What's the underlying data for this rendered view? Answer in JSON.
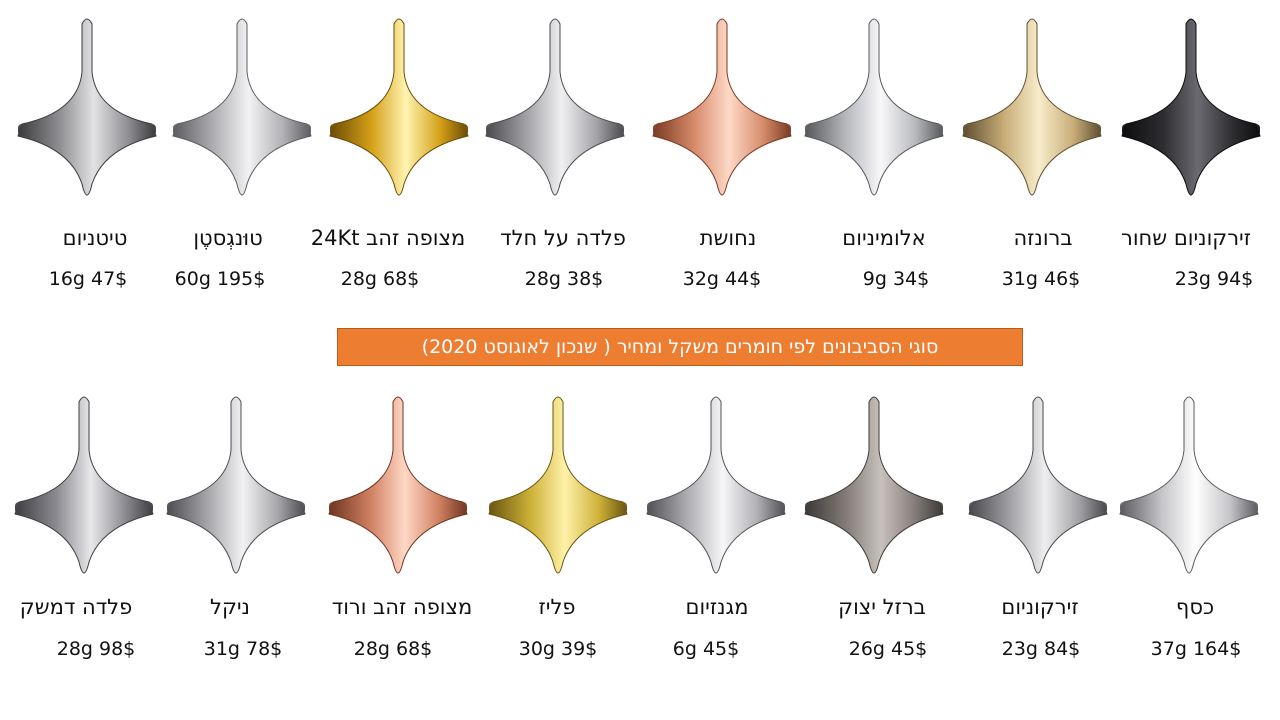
{
  "banner": "סוגי הסביבונים לפי חומרים משקל ומחיר ( שנכון לאוגוסט 2020)",
  "row1": [
    {
      "name": "טיטניום",
      "price": "16g 47$",
      "icon": "titanium-spinning-top",
      "c1": "#3a3a3c",
      "c2": "#8e8e92",
      "c3": "#e2e2e4"
    },
    {
      "name": "טוּנגְסטֶן",
      "price": "60g 195$",
      "icon": "tungsten-spinning-top",
      "c1": "#5c5c60",
      "c2": "#b0b0b4",
      "c3": "#f2f2f4"
    },
    {
      "name": "מצופה זהב 24Kt",
      "price": "28g 68$",
      "icon": "gold-plated-spinning-top",
      "c1": "#6b4a06",
      "c2": "#d4a017",
      "c3": "#fff4b0"
    },
    {
      "name": "פלדה על חלד",
      "price": "28g 38$",
      "icon": "stainless-steel-spinning-top",
      "c1": "#4a4a4e",
      "c2": "#a4a4a8",
      "c3": "#f0f0f2"
    },
    {
      "name": "נחושת",
      "price": "32g 44$",
      "icon": "copper-spinning-top",
      "c1": "#7a3a22",
      "c2": "#d68b6a",
      "c3": "#ffd9c8"
    },
    {
      "name": "אלומיניום",
      "price": "9g 34$",
      "icon": "aluminum-spinning-top",
      "c1": "#55575b",
      "c2": "#b8b9bd",
      "c3": "#f8f8fa"
    },
    {
      "name": "ברונזה",
      "price": "31g 46$",
      "icon": "bronze-spinning-top",
      "c1": "#5e4e30",
      "c2": "#c8ad78",
      "c3": "#f8ecca"
    },
    {
      "name": "זירקוניום שחור",
      "price": "23g 94$",
      "icon": "black-zirconium-spinning-top",
      "c1": "#0c0c0e",
      "c2": "#2e2e32",
      "c3": "#6a6a70"
    }
  ],
  "row2": [
    {
      "name": "פלדה דמשק",
      "price": "28g 98$",
      "icon": "damascus-steel-spinning-top",
      "c1": "#3e3e42",
      "c2": "#8a8a90",
      "c3": "#e8e8ea"
    },
    {
      "name": "ניקל",
      "price": "31g 78$",
      "icon": "nickel-spinning-top",
      "c1": "#4c4c50",
      "c2": "#a8a8ac",
      "c3": "#f2f2f4"
    },
    {
      "name": "מצופה זהב ורוד",
      "price": "28g 68$",
      "icon": "rose-gold-plated-spinning-top",
      "c1": "#6e3520",
      "c2": "#d08062",
      "c3": "#ffd8c6"
    },
    {
      "name": "פליז",
      "price": "30g 39$",
      "icon": "brass-spinning-top",
      "c1": "#6a5510",
      "c2": "#cdb038",
      "c3": "#fff2a8"
    },
    {
      "name": "מגנזיום",
      "price": "6g 45$",
      "icon": "magnesium-spinning-top",
      "c1": "#505054",
      "c2": "#b0b0b4",
      "c3": "#f6f6f8"
    },
    {
      "name": "ברזל יצוק",
      "price": "26g 45$",
      "icon": "cast-iron-spinning-top",
      "c1": "#3c3836",
      "c2": "#837c78",
      "c3": "#c8c2be"
    },
    {
      "name": "זירקוניום",
      "price": "23g 84$",
      "icon": "zirconium-spinning-top",
      "c1": "#48484c",
      "c2": "#a2a2a6",
      "c3": "#eeeef0"
    },
    {
      "name": "כסף",
      "price": "37g 164$",
      "icon": "silver-spinning-top",
      "c1": "#5a5a5e",
      "c2": "#c4c4c8",
      "c3": "#ffffff"
    }
  ]
}
